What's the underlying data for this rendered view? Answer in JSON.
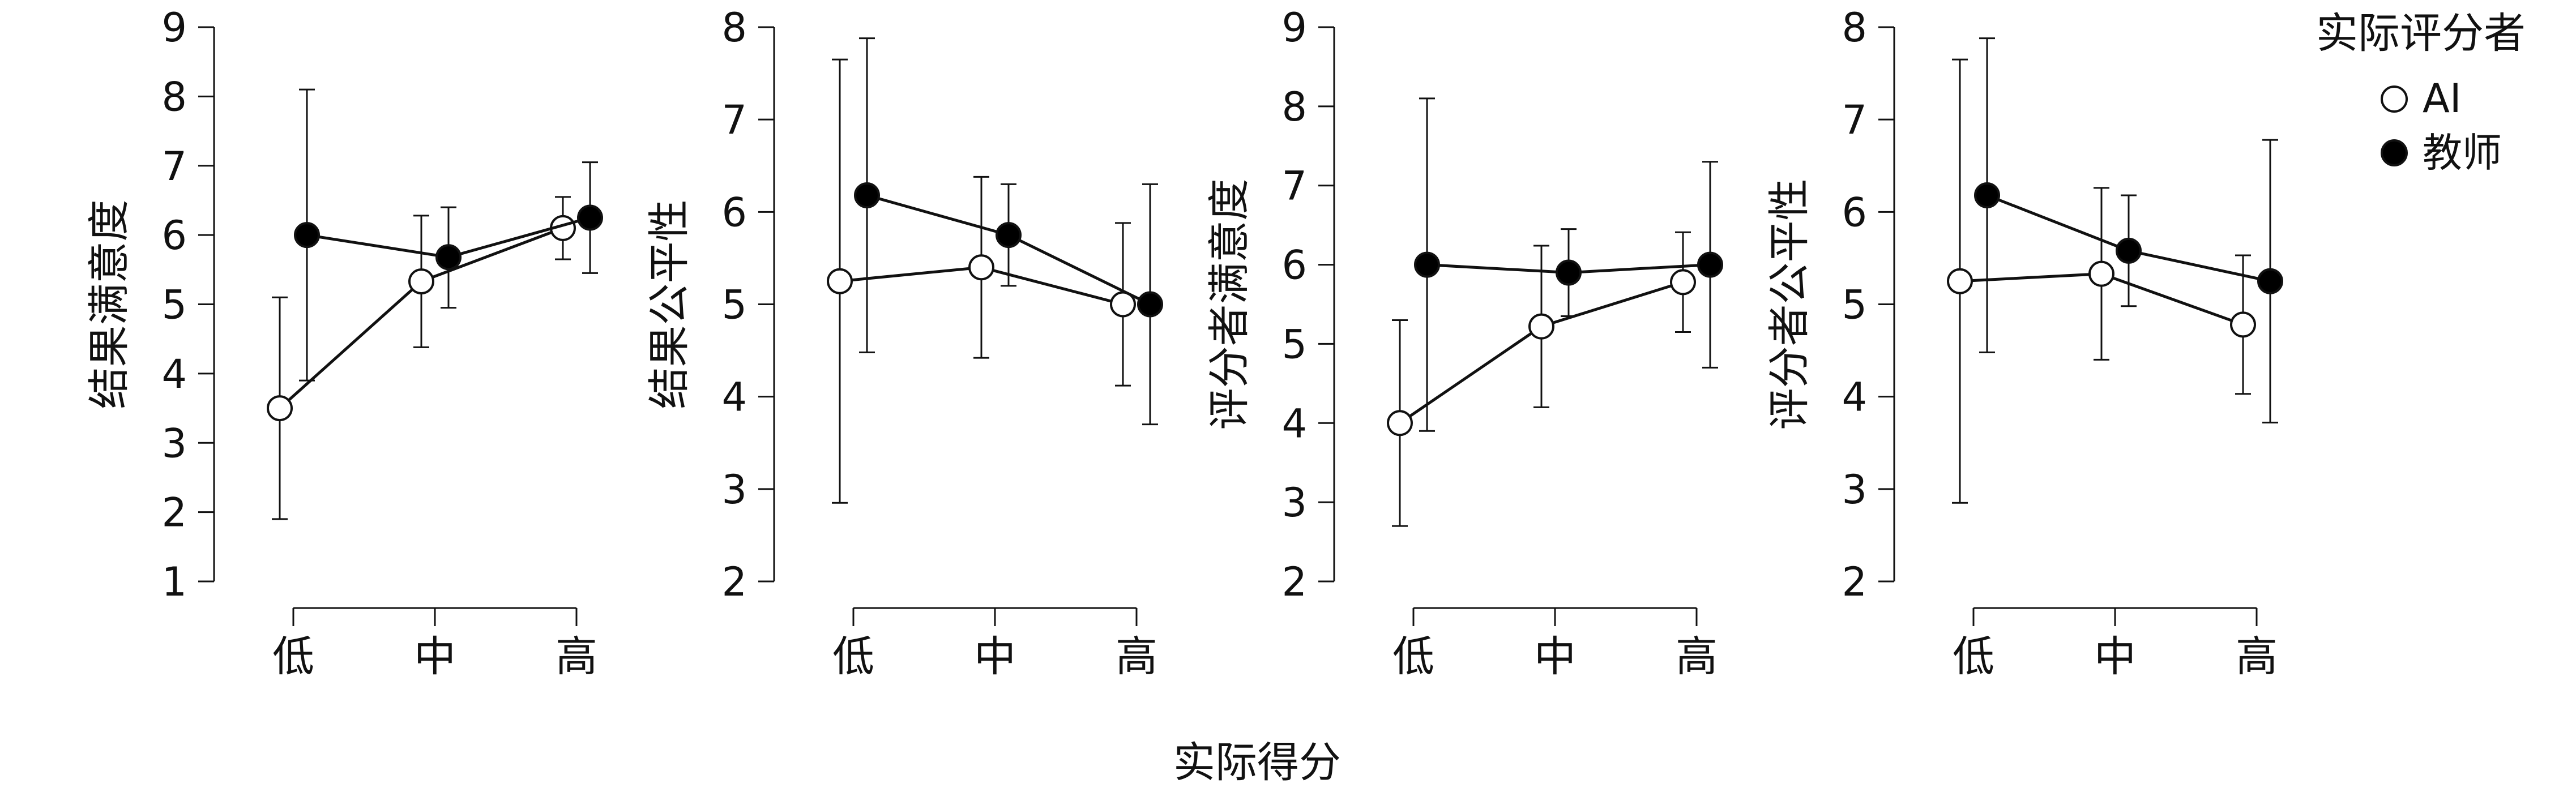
{
  "xlabel": "实际得分",
  "legend": {
    "title": "实际评分者",
    "items": [
      {
        "label": "AI",
        "fill": "#ffffff"
      },
      {
        "label": "教师",
        "fill": "#000000"
      }
    ]
  },
  "colors": {
    "line": "#111111",
    "ai_fill": "#ffffff",
    "teacher_fill": "#000000"
  },
  "chart_data": [
    {
      "type": "line",
      "ylabel": "结果满意度",
      "categories": [
        "低",
        "中",
        "高"
      ],
      "ylim": [
        1,
        9
      ],
      "yticks": [
        1,
        2,
        3,
        4,
        5,
        6,
        7,
        8,
        9
      ],
      "series": [
        {
          "name": "AI",
          "values": [
            3.5,
            5.33,
            6.1
          ],
          "err_low": [
            1.9,
            4.38,
            5.65
          ],
          "err_high": [
            5.1,
            6.28,
            6.55
          ]
        },
        {
          "name": "教师",
          "values": [
            6.0,
            5.68,
            6.25
          ],
          "err_low": [
            3.9,
            4.95,
            5.45
          ],
          "err_high": [
            8.1,
            6.4,
            7.05
          ]
        }
      ]
    },
    {
      "type": "line",
      "ylabel": "结果公平性",
      "categories": [
        "低",
        "中",
        "高"
      ],
      "ylim": [
        2,
        8
      ],
      "yticks": [
        2,
        3,
        4,
        5,
        6,
        7,
        8
      ],
      "series": [
        {
          "name": "AI",
          "values": [
            5.25,
            5.4,
            5.0
          ],
          "err_low": [
            2.85,
            4.42,
            4.12
          ],
          "err_high": [
            7.65,
            6.38,
            5.88
          ]
        },
        {
          "name": "教师",
          "values": [
            6.18,
            5.75,
            5.0
          ],
          "err_low": [
            4.48,
            5.2,
            3.7
          ],
          "err_high": [
            7.88,
            6.3,
            6.3
          ]
        }
      ]
    },
    {
      "type": "line",
      "ylabel": "评分者满意度",
      "categories": [
        "低",
        "中",
        "高"
      ],
      "ylim": [
        2,
        9
      ],
      "yticks": [
        2,
        3,
        4,
        5,
        6,
        7,
        8,
        9
      ],
      "series": [
        {
          "name": "AI",
          "values": [
            4.0,
            5.22,
            5.78
          ],
          "err_low": [
            2.7,
            4.2,
            5.15
          ],
          "err_high": [
            5.3,
            6.24,
            6.41
          ]
        },
        {
          "name": "教师",
          "values": [
            6.0,
            5.9,
            6.0
          ],
          "err_low": [
            3.9,
            5.35,
            4.7
          ],
          "err_high": [
            8.1,
            6.45,
            7.3
          ]
        }
      ]
    },
    {
      "type": "line",
      "ylabel": "评分者公平性",
      "categories": [
        "低",
        "中",
        "高"
      ],
      "ylim": [
        2,
        8
      ],
      "yticks": [
        2,
        3,
        4,
        5,
        6,
        7,
        8
      ],
      "series": [
        {
          "name": "AI",
          "values": [
            5.25,
            5.33,
            4.78
          ],
          "err_low": [
            2.85,
            4.4,
            4.03
          ],
          "err_high": [
            7.65,
            6.26,
            5.53
          ]
        },
        {
          "name": "教师",
          "values": [
            6.18,
            5.58,
            5.25
          ],
          "err_low": [
            4.48,
            4.98,
            3.72
          ],
          "err_high": [
            7.88,
            6.18,
            6.78
          ]
        }
      ]
    }
  ]
}
